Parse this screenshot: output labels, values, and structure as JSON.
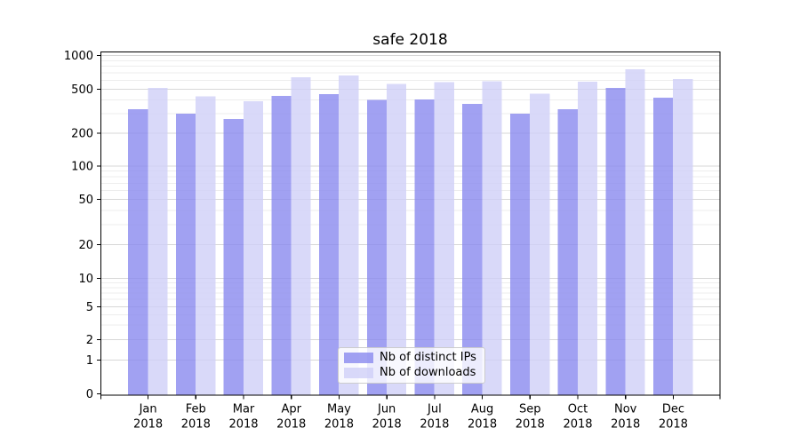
{
  "chart_data": {
    "type": "bar",
    "title": "safe 2018",
    "year_label": "2018",
    "categories": [
      "Jan",
      "Feb",
      "Mar",
      "Apr",
      "May",
      "Jun",
      "Jul",
      "Aug",
      "Sep",
      "Oct",
      "Nov",
      "Dec"
    ],
    "series": [
      {
        "name": "Nb of distinct IPs",
        "color": "#8a8aef",
        "values": [
          330,
          300,
          270,
          435,
          450,
          400,
          405,
          370,
          300,
          330,
          515,
          420
        ]
      },
      {
        "name": "Nb of downloads",
        "color": "#d0d0f8",
        "values": [
          515,
          430,
          390,
          640,
          665,
          560,
          580,
          590,
          455,
          585,
          755,
          615
        ]
      }
    ],
    "bar_opacity": 0.8,
    "yscale": "symlog",
    "yticks": [
      0,
      1,
      2,
      5,
      10,
      20,
      50,
      100,
      200,
      500,
      1000
    ],
    "ylim": [
      0,
      1000
    ],
    "xlabel": "",
    "ylabel": "",
    "grid": true,
    "legend_position": "lower center",
    "axis_color": "#000000",
    "grid_color_major": "#d7d7d7",
    "grid_color_minor": "#ededed",
    "background": "#ffffff"
  }
}
